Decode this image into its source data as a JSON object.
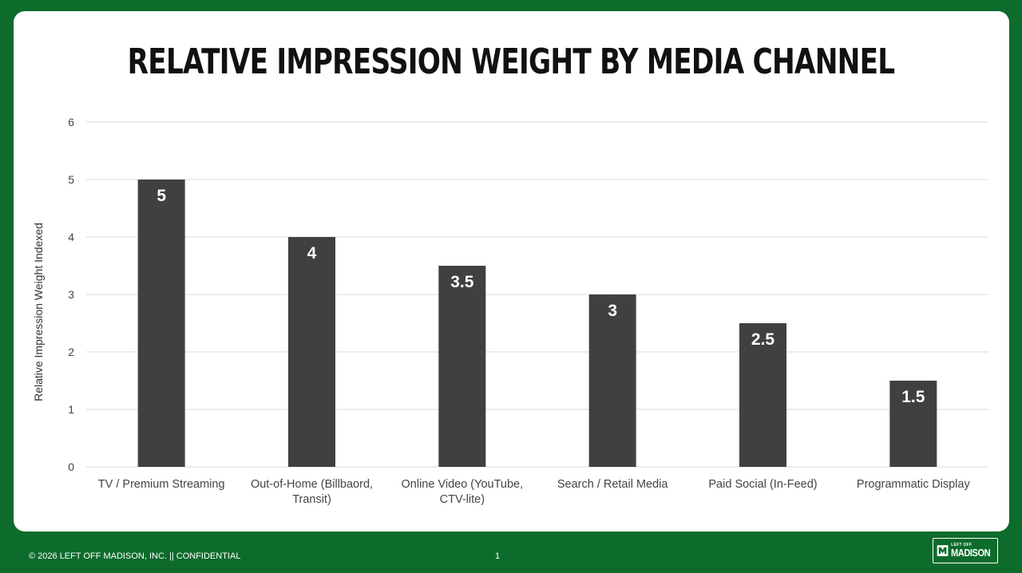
{
  "chart_data": {
    "type": "bar",
    "title": "RELATIVE IMPRESSION WEIGHT BY MEDIA CHANNEL",
    "xlabel": "",
    "ylabel": "Relative Impression Weight Indexed",
    "ylim": [
      0,
      6
    ],
    "yticks": [
      0,
      1,
      2,
      3,
      4,
      5,
      6
    ],
    "grid": true,
    "categories": [
      [
        "TV / Premium Streaming"
      ],
      [
        "Out-of-Home (Billbaord,",
        "Transit)"
      ],
      [
        "Online Video (YouTube,",
        "CTV-lite)"
      ],
      [
        "Search / Retail Media"
      ],
      [
        "Paid Social (In-Feed)"
      ],
      [
        "Programmatic Display"
      ]
    ],
    "values": [
      5,
      4,
      3.5,
      3,
      2.5,
      1.5
    ],
    "data_labels": [
      "5",
      "4",
      "3.5",
      "3",
      "2.5",
      "1.5"
    ],
    "bar_color": "#404040",
    "grid_color": "#d9d9d9"
  },
  "footer": {
    "copyright": "© 2026 LEFT OFF MADISON, INC.  ||  CONFIDENTIAL",
    "page_number": "1"
  },
  "logo": {
    "top_text": "LEFT OFF",
    "main_text": "MADISON"
  },
  "colors": {
    "background": "#0d6b2c",
    "card": "#ffffff"
  }
}
